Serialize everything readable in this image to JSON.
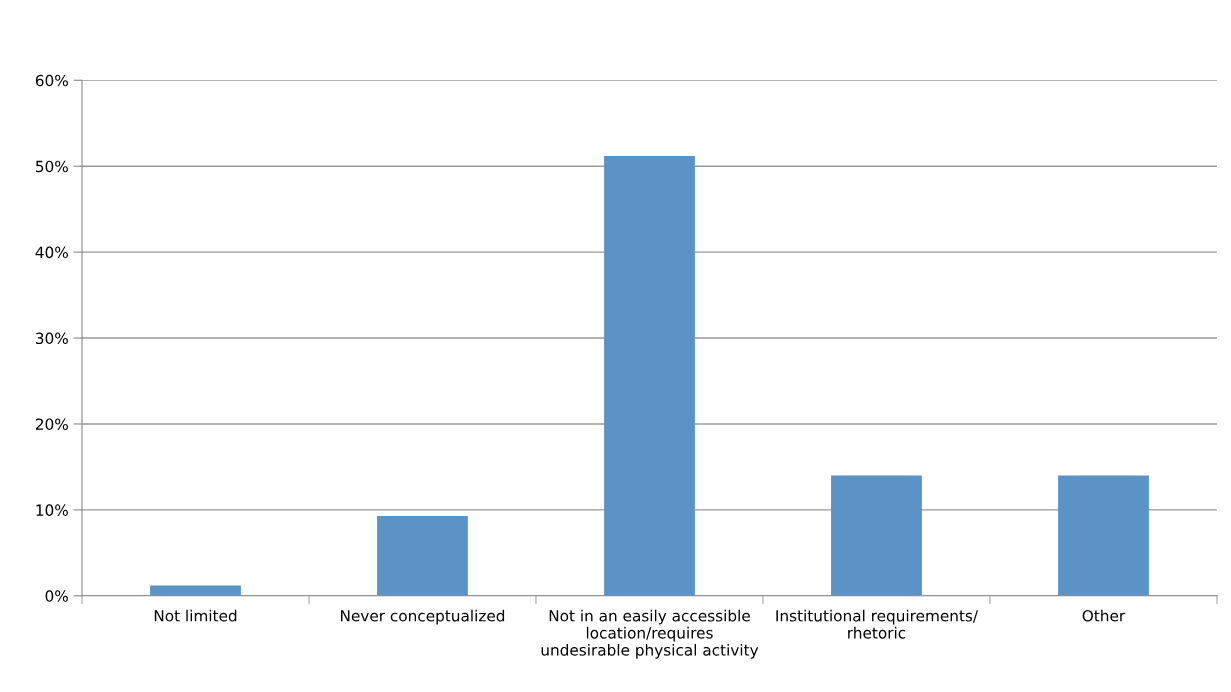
{
  "chart_data": {
    "type": "bar",
    "categories": [
      "Not limited",
      "Never conceptualized",
      "Not in an easily accessible\nlocation/requires\nundesirable physical activity",
      "Institutional requirements/\nrhetoric",
      "Other"
    ],
    "values": [
      1.2,
      9.3,
      51.2,
      14.0,
      14.0
    ],
    "color": "#5b93c7",
    "ylim": [
      0,
      60
    ],
    "yticks": [
      {
        "value": 0,
        "label": "0%"
      },
      {
        "value": 10,
        "label": "10%"
      },
      {
        "value": 20,
        "label": "20%"
      },
      {
        "value": 30,
        "label": "30%"
      },
      {
        "value": 40,
        "label": "40%"
      },
      {
        "value": 50,
        "label": "50%"
      },
      {
        "value": 60,
        "label": "60%"
      }
    ],
    "grid": "y",
    "legend": false
  }
}
